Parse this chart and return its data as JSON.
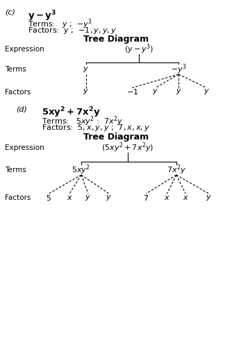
{
  "bg_color": "#ffffff",
  "text_color": "#000000",
  "c_label": "(c)",
  "c_tree_title": "Tree Diagram",
  "c_expr_label": "Expression",
  "c_terms_label": "Terms",
  "c_factors_label": "Factors",
  "d_label": "(d)",
  "d_tree_title": "Tree Diagram",
  "d_expr_label": "Expression",
  "d_terms_label": "Terms",
  "d_factors_label": "Factors"
}
